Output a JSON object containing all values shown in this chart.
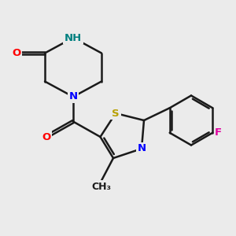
{
  "background_color": "#ebebeb",
  "line_color": "#1a1a1a",
  "bond_width": 1.8,
  "atom_colors": {
    "O": "#ff0000",
    "N": "#0000ff",
    "S": "#b8a000",
    "F": "#e000a0",
    "H": "#008080",
    "C": "#1a1a1a"
  },
  "font_size": 9.5
}
